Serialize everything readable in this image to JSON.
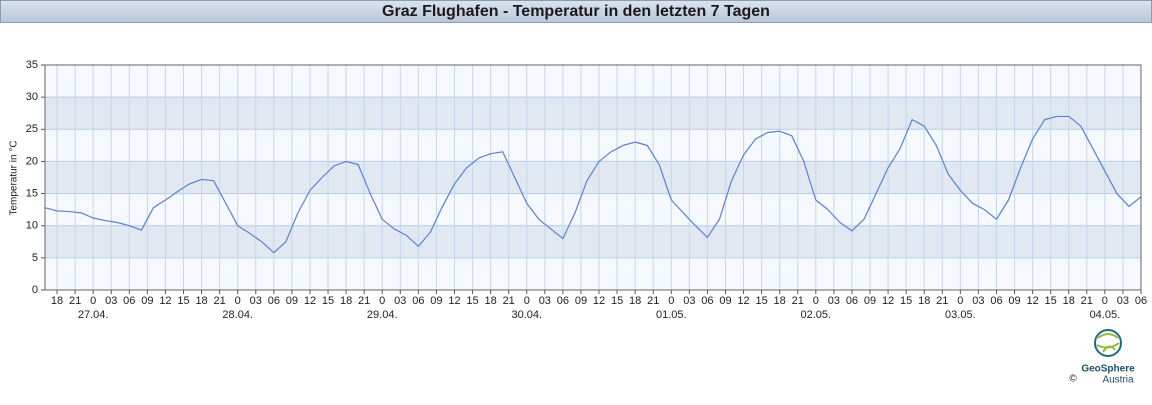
{
  "chart_data": {
    "type": "line",
    "title": "Graz Flughafen - Temperatur in den letzten 7 Tagen",
    "ylabel": "Temperatur in °C",
    "color": "#5a80d8",
    "x": [
      -8,
      -6,
      -4,
      -2,
      0,
      2,
      4,
      6,
      8,
      10,
      12,
      14,
      16,
      18,
      20,
      22,
      24,
      26,
      28,
      30,
      32,
      34,
      36,
      38,
      40,
      42,
      44,
      46,
      48,
      50,
      52,
      54,
      56,
      58,
      60,
      62,
      64,
      66,
      68,
      70,
      72,
      74,
      76,
      78,
      80,
      82,
      84,
      86,
      88,
      90,
      92,
      94,
      96,
      98,
      100,
      102,
      104,
      106,
      108,
      110,
      112,
      114,
      116,
      118,
      120,
      122,
      124,
      126,
      128,
      130,
      132,
      134,
      136,
      138,
      140,
      142,
      144,
      146,
      148,
      150,
      152,
      154,
      156,
      158,
      160,
      162,
      164,
      166,
      168,
      170,
      172,
      174
    ],
    "values": [
      12.8,
      12.3,
      12.2,
      12.0,
      11.2,
      10.8,
      10.5,
      10.0,
      9.3,
      12.8,
      14.0,
      15.3,
      16.5,
      17.2,
      17.0,
      13.5,
      10.0,
      8.8,
      7.5,
      5.8,
      7.5,
      12.0,
      15.5,
      17.5,
      19.3,
      20.0,
      19.5,
      15.0,
      11.0,
      9.5,
      8.5,
      6.8,
      9.0,
      13.0,
      16.5,
      19.0,
      20.5,
      21.2,
      21.5,
      17.5,
      13.5,
      11.0,
      9.5,
      8.0,
      12.0,
      17.0,
      20.0,
      21.5,
      22.5,
      23.0,
      22.5,
      19.5,
      14.0,
      12.0,
      10.0,
      8.2,
      11.0,
      17.0,
      21.0,
      23.5,
      24.5,
      24.7,
      24.0,
      20.0,
      14.0,
      12.5,
      10.5,
      9.2,
      11.0,
      15.0,
      19.0,
      22.0,
      26.5,
      25.5,
      22.5,
      18.0,
      15.5,
      13.5,
      12.5,
      11.0,
      14.0,
      19.0,
      23.5,
      26.5,
      27.0,
      27.0,
      25.5,
      22.0,
      18.5,
      15.0,
      13.0,
      14.5
    ],
    "xlim": [
      -8,
      174
    ],
    "xticks": [
      {
        "value": -6,
        "label": "18"
      },
      {
        "value": -3,
        "label": "21"
      },
      {
        "value": 0,
        "label": "0"
      },
      {
        "value": 3,
        "label": "03"
      },
      {
        "value": 6,
        "label": "06"
      },
      {
        "value": 9,
        "label": "09"
      },
      {
        "value": 12,
        "label": "12"
      },
      {
        "value": 15,
        "label": "15"
      },
      {
        "value": 18,
        "label": "18"
      },
      {
        "value": 21,
        "label": "21"
      },
      {
        "value": 24,
        "label": "0"
      },
      {
        "value": 27,
        "label": "03"
      },
      {
        "value": 30,
        "label": "06"
      },
      {
        "value": 33,
        "label": "09"
      },
      {
        "value": 36,
        "label": "12"
      },
      {
        "value": 39,
        "label": "15"
      },
      {
        "value": 42,
        "label": "18"
      },
      {
        "value": 45,
        "label": "21"
      },
      {
        "value": 48,
        "label": "0"
      },
      {
        "value": 51,
        "label": "03"
      },
      {
        "value": 54,
        "label": "06"
      },
      {
        "value": 57,
        "label": "09"
      },
      {
        "value": 60,
        "label": "12"
      },
      {
        "value": 63,
        "label": "15"
      },
      {
        "value": 66,
        "label": "18"
      },
      {
        "value": 69,
        "label": "21"
      },
      {
        "value": 72,
        "label": "0"
      },
      {
        "value": 75,
        "label": "03"
      },
      {
        "value": 78,
        "label": "06"
      },
      {
        "value": 81,
        "label": "09"
      },
      {
        "value": 84,
        "label": "12"
      },
      {
        "value": 87,
        "label": "15"
      },
      {
        "value": 90,
        "label": "18"
      },
      {
        "value": 93,
        "label": "21"
      },
      {
        "value": 96,
        "label": "0"
      },
      {
        "value": 99,
        "label": "03"
      },
      {
        "value": 102,
        "label": "06"
      },
      {
        "value": 105,
        "label": "09"
      },
      {
        "value": 108,
        "label": "12"
      },
      {
        "value": 111,
        "label": "15"
      },
      {
        "value": 114,
        "label": "18"
      },
      {
        "value": 117,
        "label": "21"
      },
      {
        "value": 120,
        "label": "0"
      },
      {
        "value": 123,
        "label": "03"
      },
      {
        "value": 126,
        "label": "06"
      },
      {
        "value": 129,
        "label": "09"
      },
      {
        "value": 132,
        "label": "12"
      },
      {
        "value": 135,
        "label": "15"
      },
      {
        "value": 138,
        "label": "18"
      },
      {
        "value": 141,
        "label": "21"
      },
      {
        "value": 144,
        "label": "0"
      },
      {
        "value": 147,
        "label": "03"
      },
      {
        "value": 150,
        "label": "06"
      },
      {
        "value": 153,
        "label": "09"
      },
      {
        "value": 156,
        "label": "12"
      },
      {
        "value": 159,
        "label": "15"
      },
      {
        "value": 162,
        "label": "18"
      },
      {
        "value": 165,
        "label": "21"
      },
      {
        "value": 168,
        "label": "0"
      },
      {
        "value": 171,
        "label": "03"
      },
      {
        "value": 174,
        "label": "06"
      }
    ],
    "date_labels": [
      {
        "value": 0,
        "label": "27.04."
      },
      {
        "value": 24,
        "label": "28.04."
      },
      {
        "value": 48,
        "label": "29.04."
      },
      {
        "value": 72,
        "label": "30.04."
      },
      {
        "value": 96,
        "label": "01.05."
      },
      {
        "value": 120,
        "label": "02.05."
      },
      {
        "value": 144,
        "label": "03.05."
      },
      {
        "value": 168,
        "label": "04.05."
      }
    ],
    "ylim": [
      0,
      35
    ],
    "yticks": [
      0,
      5,
      10,
      15,
      20,
      25,
      30,
      35
    ],
    "grid": true
  },
  "logo": {
    "name": "GeoSphere",
    "sub": "Austria",
    "copyright": "©"
  }
}
